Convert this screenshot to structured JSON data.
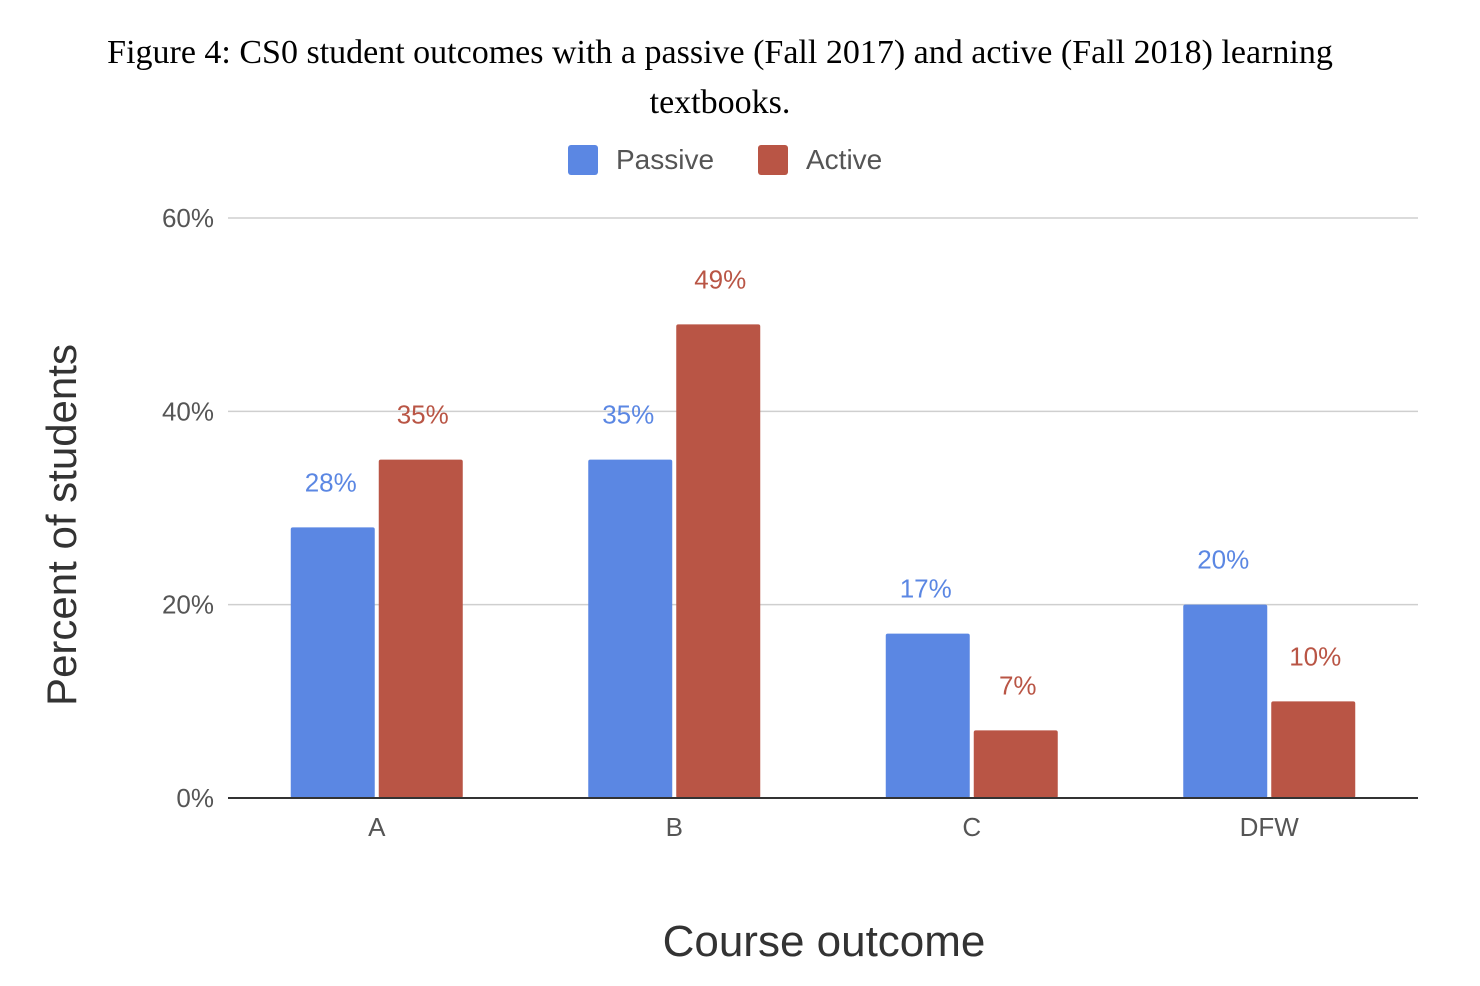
{
  "figure": {
    "caption": "Figure 4: CS0 student outcomes with a passive (Fall 2017) and active (Fall 2018) learning textbooks."
  },
  "chart_data": {
    "type": "bar",
    "title": "",
    "categories": [
      "A",
      "B",
      "C",
      "DFW"
    ],
    "series": [
      {
        "name": "Passive",
        "color": "#5b87e3",
        "values": [
          28,
          35,
          17,
          20
        ],
        "labels": [
          "28%",
          "35%",
          "17%",
          "20%"
        ]
      },
      {
        "name": "Active",
        "color": "#b95545",
        "values": [
          35,
          49,
          7,
          10
        ],
        "labels": [
          "35%",
          "49%",
          "7%",
          "10%"
        ]
      }
    ],
    "xlabel": "Course outcome",
    "ylabel": "Percent of students",
    "ylim": [
      0,
      60
    ],
    "yticks": [
      0,
      20,
      40,
      60
    ],
    "ytick_labels": [
      "0%",
      "20%",
      "40%",
      "60%"
    ],
    "grid": true,
    "legend_position": "top-center"
  }
}
